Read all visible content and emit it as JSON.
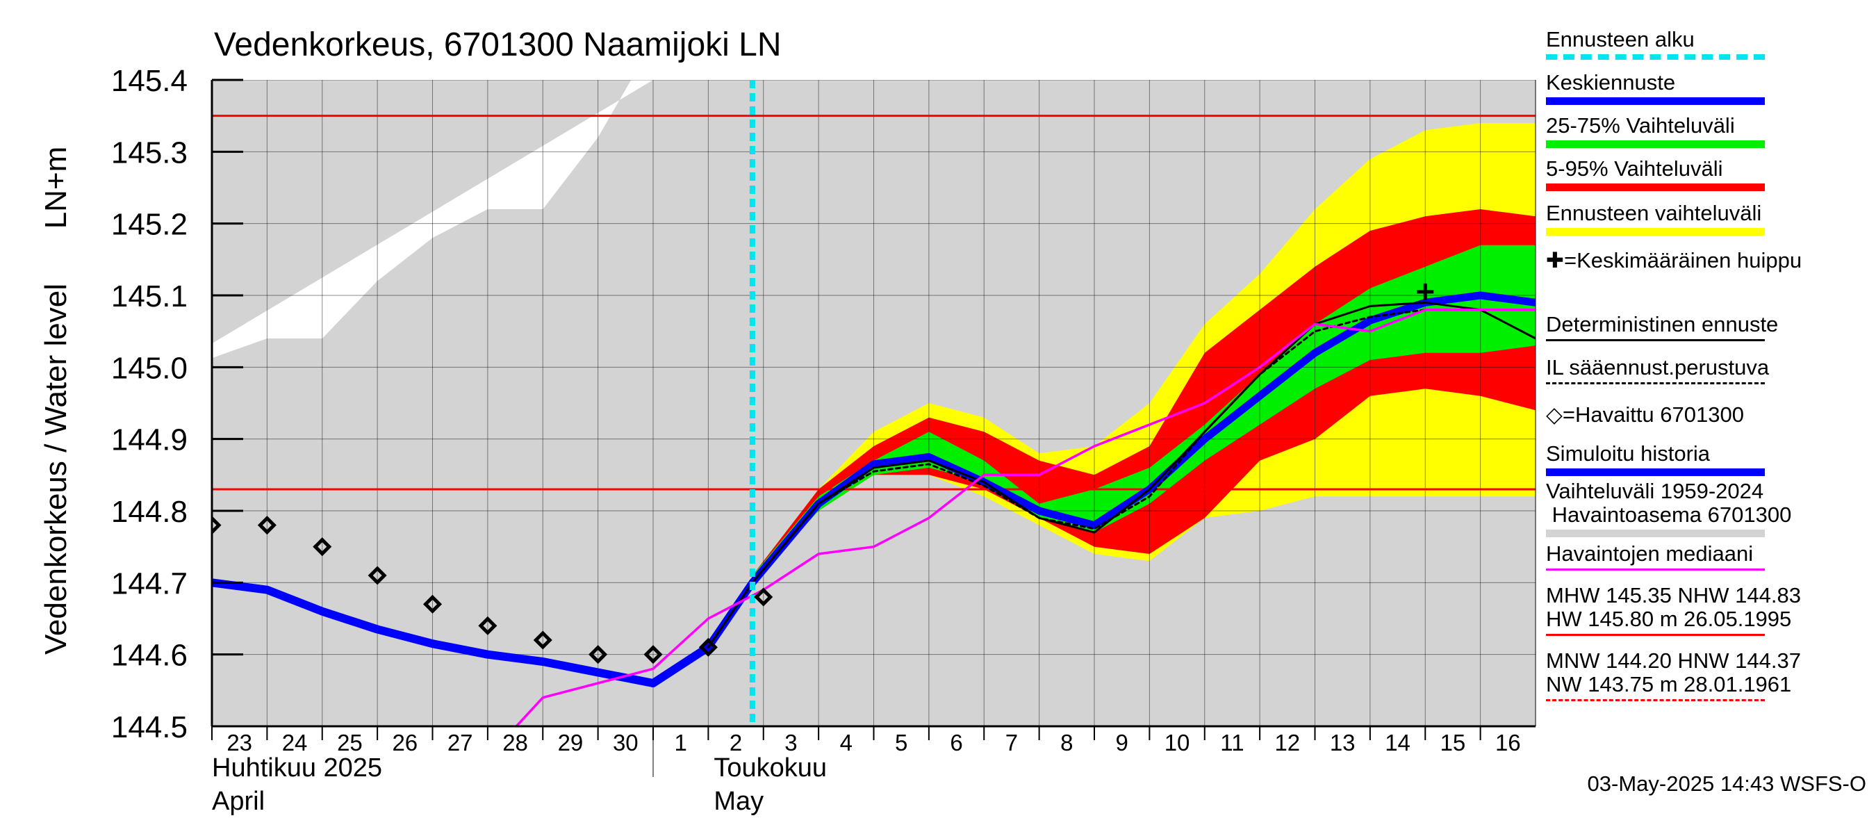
{
  "chart_data": {
    "type": "line",
    "title": "Vedenkorkeus, 6701300 Naamijoki LN",
    "ylabel_top": "LN+m",
    "ylabel": "Vedenkorkeus / Water level",
    "ylim": [
      144.5,
      145.4
    ],
    "yticks": [
      "144.5",
      "144.6",
      "144.7",
      "144.8",
      "144.9",
      "145.0",
      "145.1",
      "145.2",
      "145.3",
      "145.4"
    ],
    "grid": true,
    "x_day_index_note": "days from 23 April 2025",
    "xticks": [
      "23",
      "24",
      "25",
      "26",
      "27",
      "28",
      "29",
      "30",
      "1",
      "2",
      "3",
      "4",
      "5",
      "6",
      "7",
      "8",
      "9",
      "10",
      "11",
      "12",
      "13",
      "14",
      "15",
      "16"
    ],
    "month_labels": [
      {
        "fi": "Huhtikuu  2025",
        "en": "April"
      },
      {
        "fi": "Toukokuu",
        "en": "May"
      }
    ],
    "forecast_start_day": 9.8,
    "reference_lines": [
      {
        "name": "MHW",
        "value": 145.35,
        "color": "#ff0000"
      },
      {
        "name": "NHW",
        "value": 144.83,
        "color": "#ff0000"
      }
    ],
    "history_range": {
      "x": [
        -0.1,
        1,
        2,
        3,
        4,
        5,
        6,
        7,
        7.6,
        8
      ],
      "upper": [
        145.01,
        145.04,
        145.04,
        145.12,
        145.18,
        145.22,
        145.22,
        145.32,
        145.4,
        145.4
      ]
    },
    "ensemble_range": {
      "x": [
        9.8,
        11,
        12,
        13,
        14,
        15,
        16,
        17,
        18,
        19,
        20,
        21,
        22,
        23,
        24
      ],
      "upper": [
        144.71,
        144.83,
        144.91,
        144.95,
        144.93,
        144.88,
        144.89,
        144.95,
        145.06,
        145.13,
        145.22,
        145.29,
        145.33,
        145.34,
        145.34
      ],
      "lower": [
        144.7,
        144.8,
        144.85,
        144.85,
        144.82,
        144.78,
        144.74,
        144.73,
        144.79,
        144.8,
        144.82,
        144.82,
        144.82,
        144.82,
        144.82
      ]
    },
    "band_5_95": {
      "x": [
        9.8,
        11,
        12,
        13,
        14,
        15,
        16,
        17,
        18,
        19,
        20,
        21,
        22,
        23,
        24
      ],
      "upper": [
        144.71,
        144.83,
        144.89,
        144.93,
        144.91,
        144.87,
        144.85,
        144.89,
        145.02,
        145.08,
        145.14,
        145.19,
        145.21,
        145.22,
        145.21
      ],
      "lower": [
        144.7,
        144.8,
        144.85,
        144.85,
        144.83,
        144.79,
        144.75,
        144.74,
        144.79,
        144.87,
        144.9,
        144.96,
        144.97,
        144.96,
        144.94
      ]
    },
    "band_25_75": {
      "x": [
        9.8,
        11,
        12,
        13,
        14,
        15,
        16,
        17,
        18,
        19,
        20,
        21,
        22,
        23,
        24
      ],
      "upper": [
        144.71,
        144.82,
        144.87,
        144.91,
        144.87,
        144.81,
        144.83,
        144.86,
        144.92,
        144.99,
        145.06,
        145.11,
        145.14,
        145.17,
        145.17
      ],
      "lower": [
        144.7,
        144.8,
        144.85,
        144.86,
        144.84,
        144.79,
        144.77,
        144.81,
        144.87,
        144.92,
        144.97,
        145.01,
        145.02,
        145.02,
        145.03
      ]
    },
    "series": [
      {
        "name": "Simuloitu historia",
        "color": "#0000ff",
        "x": [
          0,
          1,
          2,
          3,
          4,
          5,
          6,
          7,
          8,
          9
        ],
        "y": [
          144.7,
          144.69,
          144.66,
          144.635,
          144.615,
          144.6,
          144.59,
          144.575,
          144.56,
          144.61
        ]
      },
      {
        "name": "Keskiennuste",
        "color": "#0000ff",
        "x": [
          9,
          9.8,
          11,
          12,
          13,
          14,
          15,
          16,
          17,
          18,
          19,
          20,
          21,
          22,
          23,
          24
        ],
        "y": [
          144.61,
          144.7,
          144.81,
          144.865,
          144.875,
          144.84,
          144.8,
          144.78,
          144.83,
          144.9,
          144.96,
          145.02,
          145.065,
          145.09,
          145.1,
          145.09
        ]
      },
      {
        "name": "Deterministinen ennuste",
        "color": "#000000",
        "x": [
          9,
          9.8,
          11,
          12,
          13,
          14,
          15,
          16,
          17,
          18,
          19,
          20,
          21,
          22,
          23,
          24
        ],
        "y": [
          144.61,
          144.7,
          144.81,
          144.86,
          144.87,
          144.84,
          144.79,
          144.77,
          144.83,
          144.91,
          144.99,
          145.06,
          145.085,
          145.09,
          145.08,
          145.04
        ]
      },
      {
        "name": "IL sääennust.perustuva",
        "color": "#000000",
        "dashed": true,
        "x": [
          9,
          9.8,
          11,
          12,
          13,
          14,
          15,
          16,
          17,
          18,
          19,
          20,
          21,
          22,
          23
        ],
        "y": [
          144.61,
          144.7,
          144.81,
          144.855,
          144.865,
          144.835,
          144.79,
          144.775,
          144.82,
          144.91,
          144.99,
          145.05,
          145.07,
          145.08,
          145.08
        ]
      },
      {
        "name": "Havaintojen mediaani",
        "color": "#ff00ff",
        "x": [
          5.4,
          6,
          7,
          8,
          9,
          10,
          11,
          12,
          13,
          14,
          15,
          16,
          17,
          18,
          19,
          20,
          21,
          22,
          23,
          24
        ],
        "y": [
          144.49,
          144.54,
          144.56,
          144.58,
          144.65,
          144.69,
          144.74,
          144.75,
          144.79,
          144.85,
          144.85,
          144.89,
          144.92,
          144.95,
          145.0,
          145.06,
          145.05,
          145.08,
          145.08,
          145.08
        ]
      }
    ],
    "observed": {
      "name": "=Havaittu 6701300",
      "x": [
        0,
        1,
        2,
        3,
        4,
        5,
        6,
        7,
        8,
        9,
        10
      ],
      "y": [
        144.78,
        144.78,
        144.75,
        144.71,
        144.67,
        144.64,
        144.62,
        144.6,
        144.6,
        144.61,
        144.68
      ]
    },
    "mean_peak": {
      "x": 22,
      "y": 145.105
    },
    "legend": [
      {
        "label": "Ennusteen alku",
        "color": "#00e5ee",
        "style": "dotted"
      },
      {
        "label": "Keskiennuste",
        "color": "#0000ff",
        "style": "thick"
      },
      {
        "label": "25-75% Vaihteluväli",
        "color": "#00ee00",
        "style": "thick"
      },
      {
        "label": "5-95% Vaihteluväli",
        "color": "#ff0000",
        "style": "thick"
      },
      {
        "label": "Ennusteen vaihteluväli",
        "color": "#ffff00",
        "style": "thick"
      },
      {
        "label": "✚=Keskimääräinen huippu",
        "color": "",
        "style": "none"
      },
      {
        "label": "Deterministinen ennuste",
        "color": "#000000",
        "style": "thin"
      },
      {
        "label": "IL sääennust.perustuva",
        "color": "#000000",
        "style": "dashed"
      },
      {
        "label": "◇=Havaittu 6701300",
        "color": "",
        "style": "none"
      },
      {
        "label": "Simuloitu historia",
        "color": "#0000ff",
        "style": "thick"
      },
      {
        "label": "Vaihteluväli 1959-2024\n Havaintoasema 6701300",
        "color": "#d3d3d3",
        "style": "thick"
      },
      {
        "label": "Havaintojen mediaani",
        "color": "#ff00ff",
        "style": "thin"
      },
      {
        "label": "MHW 145.35 NHW 144.83\nHW 145.80 m 26.05.1995",
        "color": "#ff0000",
        "style": "thin"
      },
      {
        "label": "MNW 144.20 HNW 144.37\nNW 143.75 m 28.01.1961",
        "color": "#ff0000",
        "style": "dashed"
      }
    ]
  },
  "timestamp": "03-May-2025 14:43 WSFS-O"
}
